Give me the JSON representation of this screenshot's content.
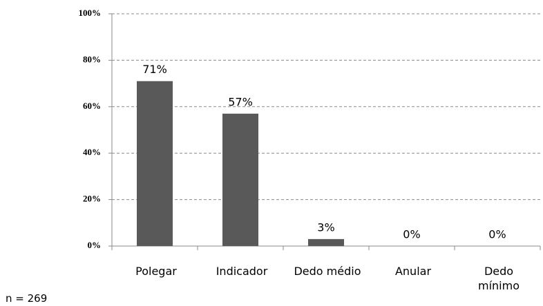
{
  "chart_data": {
    "type": "bar",
    "categories": [
      "Polegar",
      "Indicador",
      "Dedo médio",
      "Anular",
      "Dedo\nmínimo"
    ],
    "values": [
      71,
      57,
      3,
      0,
      0
    ],
    "value_labels": [
      "71%",
      "57%",
      "3%",
      "0%",
      "0%"
    ],
    "color": "#595959",
    "ylim": [
      0,
      100
    ],
    "yticks": [
      {
        "value": 0,
        "label": "0%"
      },
      {
        "value": 20,
        "label": "20%"
      },
      {
        "value": 40,
        "label": "40%"
      },
      {
        "value": 60,
        "label": "60%"
      },
      {
        "value": 80,
        "label": "80%"
      },
      {
        "value": 100,
        "label": "100%"
      }
    ],
    "grid": true,
    "annotation": "n = 269"
  }
}
